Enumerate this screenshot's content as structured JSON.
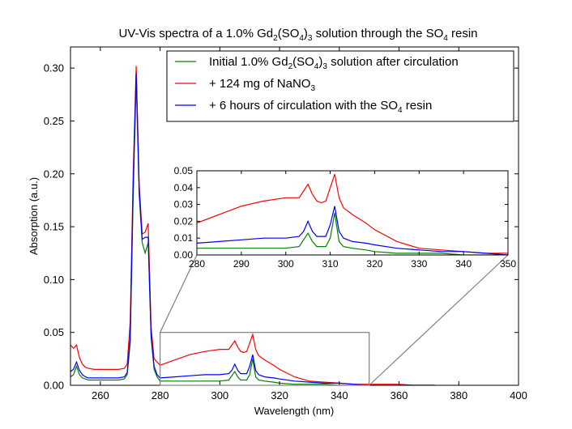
{
  "chart_data": {
    "type": "line",
    "title": {
      "prefix": "UV-Vis spectra of a 1.0% Gd",
      "sub1": "2",
      "mid1": "(SO",
      "sub2": "4",
      "mid2": ")",
      "sub3": "3",
      "mid3": " solution through the SO",
      "sub4": "4",
      "suffix": " resin"
    },
    "xlabel": "Wavelength (nm)",
    "ylabel": "Absorption (a.u.)",
    "xlim": [
      250,
      400
    ],
    "ylim": [
      0.0,
      0.32
    ],
    "xticks": [
      "260",
      "280",
      "300",
      "320",
      "340",
      "360",
      "380",
      "400"
    ],
    "yticks": [
      "0.00",
      "0.05",
      "0.10",
      "0.15",
      "0.20",
      "0.25",
      "0.30"
    ],
    "legend_position": "top-right",
    "legend": [
      {
        "text_a": "Initial 1.0% Gd",
        "sub_a": "2",
        "text_b": "(SO",
        "sub_b": "4",
        "text_c": ")",
        "sub_c": "3",
        "text_d": " solution after circulation"
      },
      {
        "text_a": "+ 124 mg of NaNO",
        "sub_a": "3"
      },
      {
        "text_a": "+ 6 hours of circulation with the SO",
        "sub_a": "4",
        "text_b": " resin"
      }
    ],
    "series": [
      {
        "name": "Initial 1.0% Gd2(SO4)3 solution after circulation",
        "color": "#008000",
        "x": [
          250,
          251,
          252,
          253,
          254,
          255,
          256,
          258,
          260,
          262,
          264,
          266,
          268,
          269,
          270,
          271,
          272,
          273,
          274,
          275,
          276,
          277,
          278,
          279,
          280,
          285,
          290,
          295,
          300,
          303,
          304,
          305,
          306,
          307,
          308,
          309,
          310,
          311,
          312,
          313,
          315,
          318,
          320,
          325,
          330,
          335,
          340,
          345,
          350,
          355,
          360,
          365,
          370,
          372
        ],
        "y": [
          0.008,
          0.01,
          0.018,
          0.01,
          0.007,
          0.006,
          0.005,
          0.005,
          0.005,
          0.005,
          0.005,
          0.005,
          0.006,
          0.01,
          0.04,
          0.18,
          0.29,
          0.18,
          0.135,
          0.125,
          0.135,
          0.045,
          0.015,
          0.008,
          0.004,
          0.004,
          0.004,
          0.004,
          0.004,
          0.005,
          0.009,
          0.013,
          0.008,
          0.005,
          0.005,
          0.005,
          0.01,
          0.025,
          0.008,
          0.005,
          0.004,
          0.003,
          0.002,
          0.001,
          0.001,
          0.001,
          0.0,
          0.0,
          0.0,
          0.0,
          0.0,
          0.0,
          0.0,
          0.0
        ]
      },
      {
        "name": "+ 124 mg of NaNO3",
        "color": "#ff0000",
        "x": [
          250,
          251,
          252,
          253,
          254,
          255,
          256,
          258,
          260,
          262,
          264,
          266,
          268,
          269,
          270,
          271,
          272,
          273,
          274,
          275,
          276,
          277,
          278,
          279,
          280,
          285,
          290,
          295,
          300,
          303,
          304,
          305,
          306,
          307,
          308,
          309,
          310,
          311,
          312,
          313,
          315,
          318,
          320,
          325,
          330,
          335,
          340,
          345,
          350,
          355,
          360,
          365,
          370,
          372
        ],
        "y": [
          0.038,
          0.035,
          0.038,
          0.026,
          0.02,
          0.017,
          0.016,
          0.015,
          0.015,
          0.015,
          0.015,
          0.015,
          0.016,
          0.02,
          0.06,
          0.2,
          0.302,
          0.19,
          0.143,
          0.145,
          0.153,
          0.055,
          0.025,
          0.022,
          0.019,
          0.024,
          0.029,
          0.032,
          0.034,
          0.034,
          0.038,
          0.042,
          0.036,
          0.032,
          0.031,
          0.032,
          0.04,
          0.048,
          0.034,
          0.028,
          0.024,
          0.019,
          0.015,
          0.008,
          0.004,
          0.003,
          0.002,
          0.001,
          0.001,
          0.001,
          0.001,
          0.0,
          0.0,
          0.0
        ]
      },
      {
        "name": "+ 6 hours of circulation with the SO4 resin",
        "color": "#0000ff",
        "x": [
          250,
          251,
          252,
          253,
          254,
          255,
          256,
          258,
          260,
          262,
          264,
          266,
          268,
          269,
          270,
          271,
          272,
          273,
          274,
          275,
          276,
          277,
          278,
          279,
          280,
          285,
          290,
          295,
          300,
          303,
          304,
          305,
          306,
          307,
          308,
          309,
          310,
          311,
          312,
          313,
          315,
          318,
          320,
          325,
          330,
          335,
          340,
          345,
          350,
          355,
          360,
          365,
          370,
          372
        ],
        "y": [
          0.013,
          0.015,
          0.022,
          0.014,
          0.01,
          0.008,
          0.007,
          0.007,
          0.007,
          0.007,
          0.007,
          0.007,
          0.008,
          0.012,
          0.045,
          0.19,
          0.295,
          0.185,
          0.138,
          0.14,
          0.14,
          0.048,
          0.018,
          0.01,
          0.007,
          0.008,
          0.009,
          0.01,
          0.01,
          0.011,
          0.014,
          0.02,
          0.014,
          0.011,
          0.011,
          0.011,
          0.018,
          0.029,
          0.014,
          0.01,
          0.008,
          0.007,
          0.006,
          0.004,
          0.003,
          0.002,
          0.002,
          0.001,
          0.0,
          0.0,
          0.0,
          0.0,
          0.0,
          0.0
        ]
      }
    ],
    "inset": {
      "xlim": [
        280,
        350
      ],
      "ylim": [
        0.0,
        0.05
      ],
      "xticks": [
        "280",
        "290",
        "300",
        "310",
        "320",
        "330",
        "340",
        "350"
      ],
      "yticks": [
        "0.00",
        "0.01",
        "0.02",
        "0.03",
        "0.04",
        "0.05"
      ],
      "zoom_region": {
        "x": [
          280,
          350
        ],
        "y": [
          0.0,
          0.05
        ]
      }
    }
  }
}
